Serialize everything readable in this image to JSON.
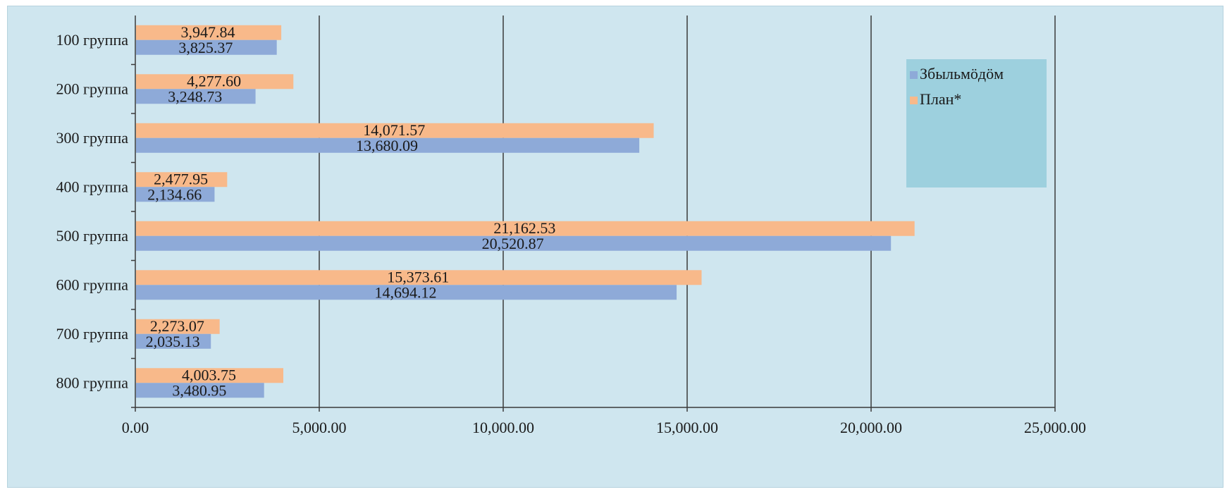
{
  "chart_data": {
    "type": "bar",
    "orientation": "horizontal",
    "categories": [
      "100 группа",
      "200 группа",
      "300 группа",
      "400 группа",
      "500 группа",
      "600 группа",
      "700 группа",
      "800 группа"
    ],
    "series": [
      {
        "name": "Збыльмӧдӧм",
        "color": "#8eaad8",
        "values": [
          3825.37,
          3248.73,
          13680.09,
          2134.66,
          20520.87,
          14694.12,
          2035.13,
          3480.95
        ],
        "labels": [
          "3,825.37",
          "3,248.73",
          "13,680.09",
          "2,134.66",
          "20,520.87",
          "14,694.12",
          "2,035.13",
          "3,480.95"
        ]
      },
      {
        "name": "План*",
        "color": "#f8b98a",
        "values": [
          3947.84,
          4277.6,
          14071.57,
          2477.95,
          21162.53,
          15373.61,
          2273.07,
          4003.75
        ],
        "labels": [
          "3,947.84",
          "4,277.60",
          "14,071.57",
          "2,477.95",
          "21,162.53",
          "15,373.61",
          "2,273.07",
          "4,003.75"
        ]
      }
    ],
    "xlim": [
      0,
      25000
    ],
    "ticks": [
      "0.00",
      "5,000.00",
      "10,000.00",
      "15,000.00",
      "20,000.00",
      "25,000.00"
    ],
    "tick_values": [
      0,
      5000,
      10000,
      15000,
      20000,
      25000
    ],
    "grid": true,
    "legend_position": "right",
    "legend_box_color": "#9dd0de",
    "title": "",
    "xlabel": "",
    "ylabel": ""
  }
}
